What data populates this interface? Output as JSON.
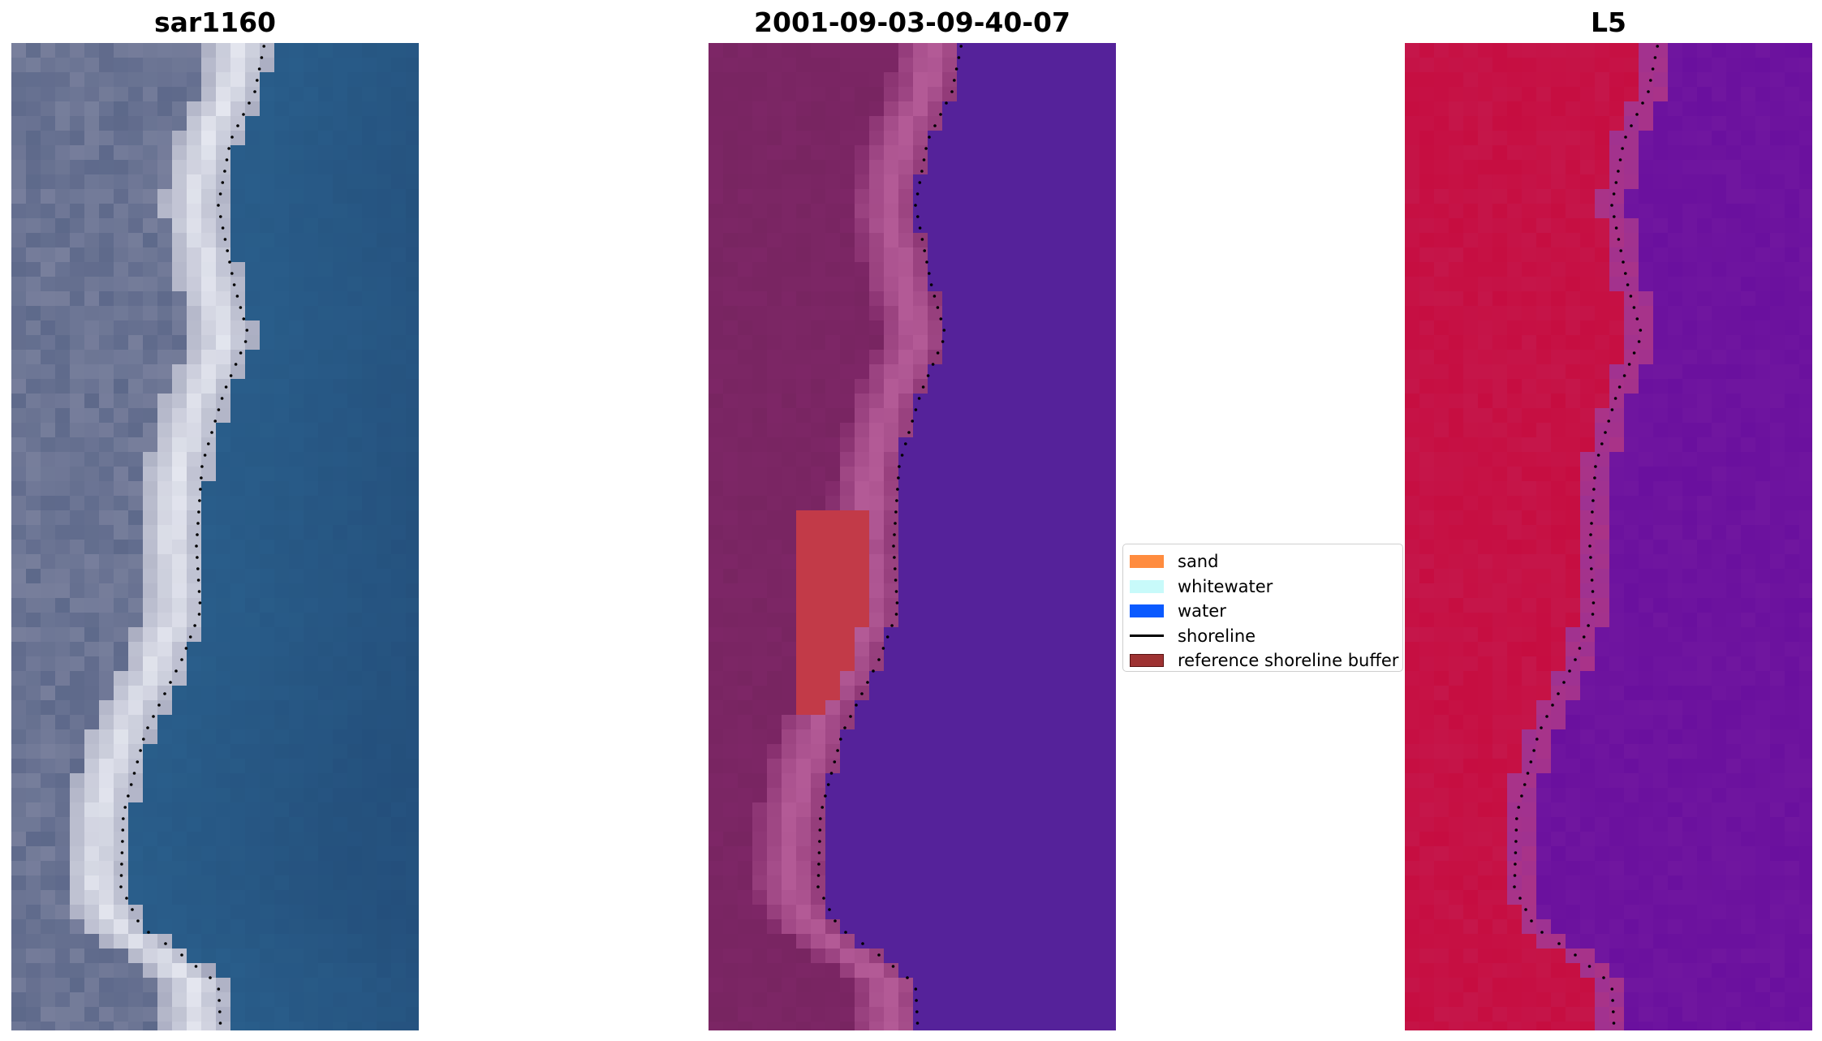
{
  "panels": [
    {
      "title": "sar1160",
      "style": "rgb"
    },
    {
      "title": "2001-09-03-09-40-07",
      "style": "classified"
    },
    {
      "title": "L5",
      "style": "index"
    }
  ],
  "legend": {
    "items": [
      {
        "label": "sand",
        "type": "patch",
        "color": "#ff8c3f"
      },
      {
        "label": "whitewater",
        "type": "patch",
        "color": "#c8fafa"
      },
      {
        "label": "water",
        "type": "patch",
        "color": "#0a5aff"
      },
      {
        "label": "shoreline",
        "type": "line",
        "color": "#000000"
      },
      {
        "label": "reference shoreline buffer",
        "type": "patch",
        "color": "#9e3232"
      }
    ]
  },
  "colors": {
    "rgb_water": "#2a5f8c",
    "rgb_sand": "#8a8ea8",
    "rgb_foam": "#e4e6ef",
    "classified_water": "#55229a",
    "classified_land": "#7d2666",
    "classified_beach": "#b35a96",
    "buffer": "#c23a48",
    "index_land": "#c5164a",
    "index_water": "#6a109e",
    "shoreline": "#000000"
  }
}
